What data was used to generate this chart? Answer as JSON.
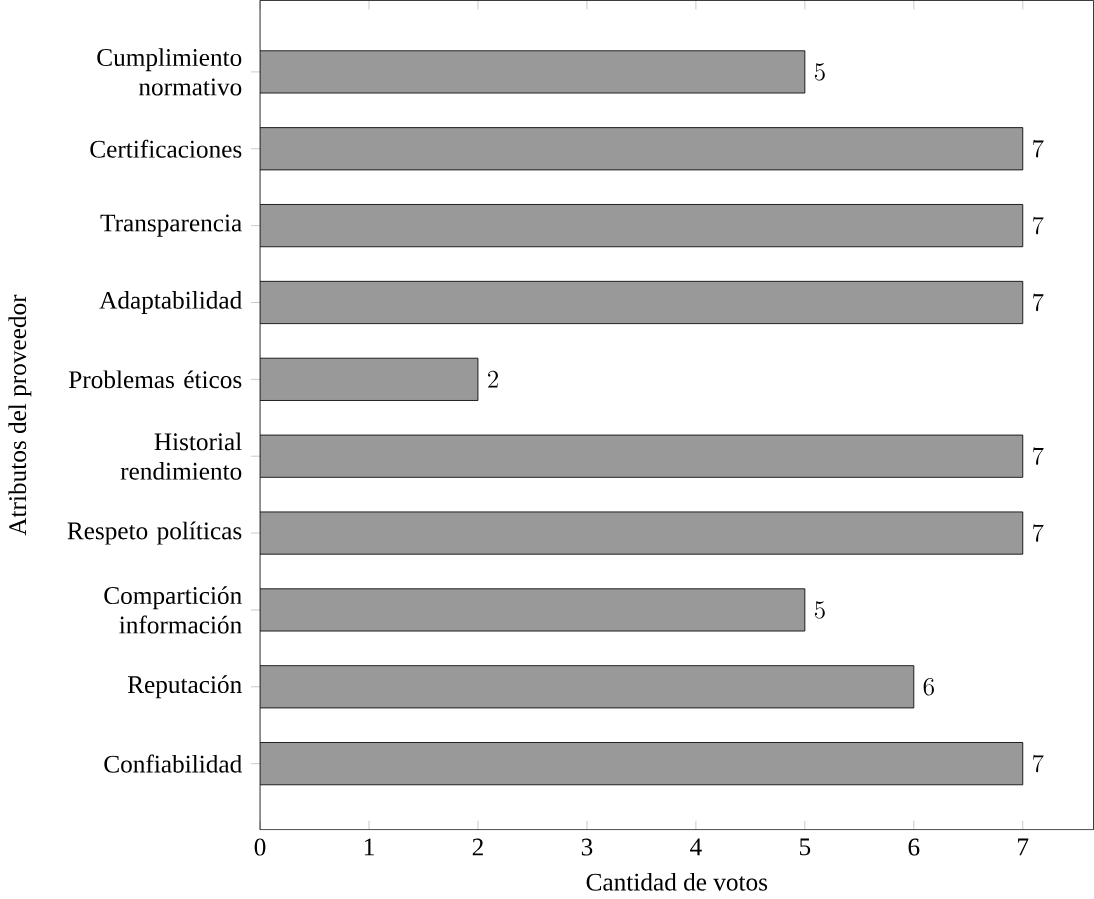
{
  "chart_data": {
    "type": "bar",
    "orientation": "horizontal",
    "xlabel": "Cantidad de votos",
    "ylabel": "Atributos del proveedor",
    "categories": [
      "Cumplimiento normativo",
      "Certificaciones",
      "Transparencia",
      "Adaptabilidad",
      "Problemas éticos",
      "Historial rendimiento",
      "Respeto políticas",
      "Compartición información",
      "Reputación",
      "Confiabilidad"
    ],
    "values": [
      5,
      7,
      7,
      7,
      2,
      7,
      7,
      5,
      6,
      7
    ],
    "color": "#999999",
    "xlim": [
      0,
      7.65
    ],
    "xticks": [
      0,
      1,
      2,
      3,
      4,
      5,
      6,
      7
    ],
    "data_labels": true
  }
}
